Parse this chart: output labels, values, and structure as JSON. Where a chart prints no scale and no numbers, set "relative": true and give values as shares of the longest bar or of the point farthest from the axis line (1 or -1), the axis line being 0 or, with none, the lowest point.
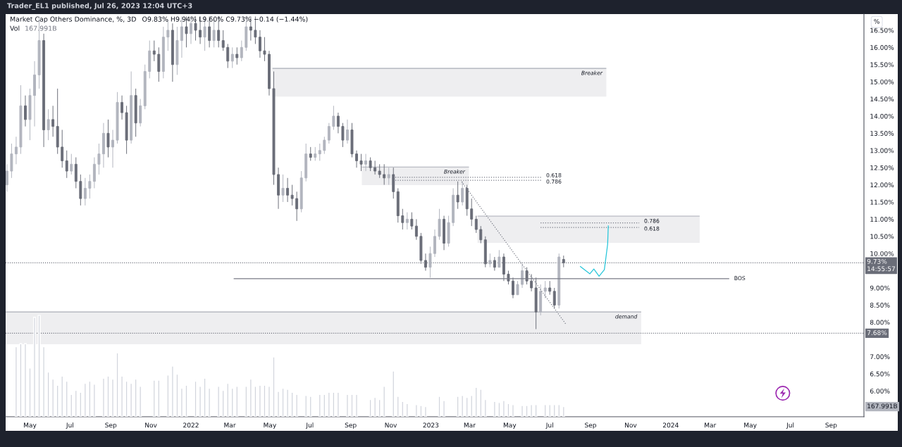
{
  "chart_data": [
    {
      "type": "candlestick",
      "title": "Market Cap Others Dominance, %, 3D",
      "subtitle": "O9.83% H9.94% L9.60% C9.73% −0.14 (−1.44%)",
      "ylabel": "%",
      "annotations": [
        "Trader_EL1 published, Jul 26, 2023 12:04 UTC+3"
      ],
      "x": [
        "2021-03-27",
        "2021-04-03",
        "2021-04-10",
        "2021-04-17",
        "2021-04-24",
        "2021-05-01",
        "2021-05-08",
        "2021-05-15",
        "2021-05-22",
        "2021-05-29",
        "2021-06-05",
        "2021-06-12",
        "2021-06-19",
        "2021-06-26",
        "2021-07-03",
        "2021-07-10",
        "2021-07-17",
        "2021-07-24",
        "2021-07-31",
        "2021-08-07",
        "2021-08-14",
        "2021-08-21",
        "2021-08-28",
        "2021-09-04",
        "2021-09-11",
        "2021-09-18",
        "2021-09-25",
        "2021-10-02",
        "2021-10-09",
        "2021-10-16",
        "2021-10-23",
        "2021-10-30",
        "2021-11-06",
        "2021-11-13",
        "2021-11-20",
        "2021-11-27",
        "2021-12-04",
        "2021-12-11",
        "2021-12-18",
        "2021-12-25",
        "2022-01-01",
        "2022-01-08",
        "2022-01-15",
        "2022-01-22",
        "2022-01-29",
        "2022-02-05",
        "2022-02-12",
        "2022-02-19",
        "2022-02-26",
        "2022-03-05",
        "2022-03-12",
        "2022-03-19",
        "2022-03-26",
        "2022-04-02",
        "2022-04-09",
        "2022-04-16",
        "2022-04-23",
        "2022-04-30",
        "2022-05-07",
        "2022-05-14",
        "2022-05-21",
        "2022-05-28",
        "2022-06-04",
        "2022-06-11",
        "2022-06-18",
        "2022-06-25",
        "2022-07-02",
        "2022-07-09",
        "2022-07-16",
        "2022-07-23",
        "2022-07-30",
        "2022-08-06",
        "2022-08-13",
        "2022-08-20",
        "2022-08-27",
        "2022-09-03",
        "2022-09-10",
        "2022-09-17",
        "2022-09-24",
        "2022-10-01",
        "2022-10-08",
        "2022-10-15",
        "2022-10-22",
        "2022-10-29",
        "2022-11-05",
        "2022-11-12",
        "2022-11-19",
        "2022-11-26",
        "2022-12-03",
        "2022-12-10",
        "2022-12-17",
        "2022-12-24",
        "2022-12-31",
        "2023-01-07",
        "2023-01-14",
        "2023-01-21",
        "2023-01-28",
        "2023-02-04",
        "2023-02-11",
        "2023-02-18",
        "2023-02-25",
        "2023-03-04",
        "2023-03-11",
        "2023-03-18",
        "2023-03-25",
        "2023-04-01",
        "2023-04-08",
        "2023-04-15",
        "2023-04-22",
        "2023-04-29",
        "2023-05-06",
        "2023-05-13",
        "2023-05-20",
        "2023-05-27",
        "2023-06-03",
        "2023-06-10",
        "2023-06-17",
        "2023-06-24",
        "2023-07-01",
        "2023-07-08",
        "2023-07-15",
        "2023-07-22"
      ],
      "ohlc": [
        [
          12.0,
          12.6,
          11.8,
          12.4
        ],
        [
          12.4,
          13.2,
          12.2,
          12.9
        ],
        [
          12.9,
          13.4,
          12.6,
          13.1
        ],
        [
          13.1,
          14.9,
          12.9,
          14.3
        ],
        [
          14.3,
          14.6,
          13.7,
          13.9
        ],
        [
          13.9,
          14.8,
          13.3,
          14.6
        ],
        [
          14.6,
          15.6,
          13.7,
          15.2
        ],
        [
          15.2,
          16.9,
          14.8,
          16.2
        ],
        [
          16.2,
          16.4,
          13.1,
          13.6
        ],
        [
          13.6,
          14.2,
          13.3,
          13.9
        ],
        [
          13.9,
          14.3,
          13.4,
          13.7
        ],
        [
          13.7,
          14.8,
          12.9,
          13.1
        ],
        [
          13.1,
          13.6,
          12.5,
          12.7
        ],
        [
          12.7,
          13.0,
          12.2,
          12.4
        ],
        [
          12.4,
          12.9,
          12.3,
          12.6
        ],
        [
          12.6,
          12.8,
          11.9,
          12.1
        ],
        [
          12.1,
          12.3,
          11.4,
          11.6
        ],
        [
          11.6,
          12.2,
          11.4,
          11.9
        ],
        [
          11.9,
          12.3,
          11.6,
          12.1
        ],
        [
          12.1,
          12.8,
          11.9,
          12.6
        ],
        [
          12.6,
          13.2,
          12.3,
          12.9
        ],
        [
          12.9,
          13.8,
          12.5,
          13.5
        ],
        [
          13.5,
          13.9,
          12.8,
          13.1
        ],
        [
          13.1,
          13.6,
          12.5,
          13.3
        ],
        [
          13.3,
          14.7,
          13.2,
          14.4
        ],
        [
          14.4,
          14.6,
          13.9,
          14.1
        ],
        [
          14.1,
          14.3,
          12.9,
          13.3
        ],
        [
          13.3,
          15.3,
          13.2,
          14.6
        ],
        [
          14.6,
          14.8,
          13.4,
          13.8
        ],
        [
          13.8,
          14.5,
          13.7,
          14.3
        ],
        [
          14.3,
          15.5,
          14.2,
          15.3
        ],
        [
          15.3,
          16.2,
          15.1,
          15.9
        ],
        [
          15.9,
          16.2,
          15.6,
          15.8
        ],
        [
          15.8,
          16.0,
          15.0,
          15.3
        ],
        [
          15.3,
          16.6,
          15.1,
          16.3
        ],
        [
          16.3,
          16.8,
          15.9,
          16.5
        ],
        [
          16.5,
          16.7,
          15.0,
          15.5
        ],
        [
          15.5,
          16.6,
          15.2,
          16.2
        ],
        [
          16.2,
          16.9,
          15.7,
          16.6
        ],
        [
          16.6,
          16.9,
          16.0,
          16.4
        ],
        [
          16.4,
          16.9,
          16.1,
          16.7
        ],
        [
          16.7,
          16.9,
          16.2,
          16.5
        ],
        [
          16.5,
          16.9,
          16.1,
          16.3
        ],
        [
          16.3,
          16.9,
          15.9,
          16.6
        ],
        [
          16.6,
          16.9,
          16.0,
          16.2
        ],
        [
          16.2,
          16.8,
          16.0,
          16.5
        ],
        [
          16.5,
          16.9,
          16.0,
          16.2
        ],
        [
          16.2,
          16.5,
          15.9,
          16.0
        ],
        [
          16.0,
          16.1,
          15.4,
          15.6
        ],
        [
          15.6,
          16.0,
          15.4,
          15.8
        ],
        [
          15.8,
          16.0,
          15.5,
          15.7
        ],
        [
          15.7,
          16.2,
          15.6,
          16.0
        ],
        [
          16.0,
          16.9,
          15.9,
          16.6
        ],
        [
          16.6,
          16.9,
          16.2,
          16.5
        ],
        [
          16.5,
          16.9,
          16.1,
          16.3
        ],
        [
          16.3,
          16.5,
          15.7,
          15.9
        ],
        [
          15.9,
          16.3,
          15.6,
          15.8
        ],
        [
          15.8,
          15.9,
          14.6,
          14.8
        ],
        [
          14.8,
          15.3,
          12.0,
          12.3
        ],
        [
          12.3,
          12.5,
          11.3,
          11.7
        ],
        [
          11.7,
          12.3,
          11.5,
          11.9
        ],
        [
          11.9,
          12.2,
          11.5,
          11.7
        ],
        [
          11.7,
          12.0,
          11.4,
          11.6
        ],
        [
          11.6,
          11.8,
          10.95,
          11.3
        ],
        [
          11.3,
          12.4,
          11.2,
          12.2
        ],
        [
          12.2,
          13.2,
          12.1,
          12.9
        ],
        [
          12.9,
          13.1,
          12.7,
          12.8
        ],
        [
          12.8,
          13.1,
          12.7,
          12.9
        ],
        [
          12.9,
          13.2,
          12.7,
          13.0
        ],
        [
          13.0,
          13.4,
          12.9,
          13.3
        ],
        [
          13.3,
          13.8,
          13.2,
          13.7
        ],
        [
          13.7,
          14.3,
          13.6,
          14.0
        ],
        [
          14.0,
          14.1,
          13.5,
          13.7
        ],
        [
          13.7,
          13.8,
          13.1,
          13.3
        ],
        [
          13.3,
          13.9,
          13.2,
          13.6
        ],
        [
          13.6,
          13.8,
          12.8,
          12.9
        ],
        [
          12.9,
          13.0,
          12.5,
          12.7
        ],
        [
          12.7,
          12.9,
          12.4,
          12.6
        ],
        [
          12.6,
          12.9,
          12.4,
          12.7
        ],
        [
          12.7,
          12.8,
          12.4,
          12.5
        ],
        [
          12.5,
          12.7,
          12.3,
          12.4
        ],
        [
          12.4,
          12.6,
          12.2,
          12.3
        ],
        [
          12.3,
          12.6,
          12.0,
          12.2
        ],
        [
          12.2,
          12.5,
          12.0,
          12.3
        ],
        [
          12.3,
          12.5,
          11.6,
          11.8
        ],
        [
          11.8,
          11.9,
          10.9,
          11.1
        ],
        [
          11.1,
          11.3,
          10.7,
          10.9
        ],
        [
          10.9,
          11.2,
          10.7,
          11.0
        ],
        [
          11.0,
          11.2,
          10.7,
          10.8
        ],
        [
          10.8,
          11.0,
          10.4,
          10.5
        ],
        [
          10.5,
          10.6,
          9.7,
          9.8
        ],
        [
          9.8,
          10.0,
          9.5,
          9.6
        ],
        [
          9.6,
          10.2,
          9.3,
          10.0
        ],
        [
          10.0,
          10.7,
          9.9,
          10.5
        ],
        [
          10.5,
          11.3,
          10.4,
          11.0
        ],
        [
          11.0,
          11.1,
          10.1,
          10.3
        ],
        [
          10.3,
          11.1,
          10.2,
          10.9
        ],
        [
          10.9,
          11.9,
          10.8,
          11.7
        ],
        [
          11.7,
          12.1,
          11.3,
          11.5
        ],
        [
          11.5,
          12.1,
          11.4,
          11.9
        ],
        [
          11.9,
          12.0,
          11.1,
          11.3
        ],
        [
          11.3,
          11.6,
          10.8,
          11.0
        ],
        [
          11.0,
          11.1,
          10.6,
          10.7
        ],
        [
          10.7,
          10.8,
          10.3,
          10.4
        ],
        [
          10.4,
          10.5,
          9.6,
          9.7
        ],
        [
          9.7,
          10.0,
          9.6,
          9.8
        ],
        [
          9.8,
          9.9,
          9.5,
          9.6
        ],
        [
          9.6,
          10.1,
          9.6,
          9.9
        ],
        [
          9.9,
          10.0,
          9.2,
          9.4
        ],
        [
          9.4,
          9.5,
          9.1,
          9.2
        ],
        [
          9.2,
          9.3,
          8.7,
          8.8
        ],
        [
          8.8,
          9.2,
          8.8,
          9.1
        ],
        [
          9.1,
          9.7,
          9.0,
          9.5
        ],
        [
          9.5,
          9.6,
          9.1,
          9.2
        ],
        [
          9.2,
          9.4,
          8.9,
          9.0
        ],
        [
          9.0,
          9.3,
          7.8,
          8.3
        ],
        [
          8.3,
          9.1,
          8.2,
          8.9
        ],
        [
          8.9,
          9.2,
          8.7,
          9.0
        ],
        [
          9.0,
          9.2,
          8.8,
          8.9
        ],
        [
          8.9,
          9.0,
          8.4,
          8.5
        ],
        [
          8.5,
          10.0,
          8.4,
          9.9
        ],
        [
          9.83,
          9.94,
          9.6,
          9.73
        ]
      ],
      "colors": [
        "#b2b5be",
        "#b2b5be",
        "#b2b5be",
        "#b2b5be",
        "#6a6d78",
        "#b2b5be",
        "#b2b5be",
        "#b2b5be",
        "#6a6d78",
        "#b2b5be",
        "#6a6d78",
        "#6a6d78",
        "#6a6d78",
        "#6a6d78",
        "#b2b5be",
        "#6a6d78",
        "#6a6d78",
        "#b2b5be",
        "#b2b5be",
        "#b2b5be",
        "#b2b5be",
        "#b2b5be",
        "#6a6d78",
        "#b2b5be",
        "#b2b5be",
        "#6a6d78",
        "#6a6d78",
        "#b2b5be",
        "#6a6d78",
        "#b2b5be",
        "#b2b5be",
        "#b2b5be",
        "#6a6d78",
        "#6a6d78",
        "#b2b5be",
        "#b2b5be",
        "#6a6d78",
        "#b2b5be",
        "#b2b5be",
        "#6a6d78",
        "#b2b5be",
        "#6a6d78",
        "#6a6d78",
        "#b2b5be",
        "#6a6d78",
        "#b2b5be",
        "#6a6d78",
        "#6a6d78",
        "#6a6d78",
        "#b2b5be",
        "#6a6d78",
        "#b2b5be",
        "#b2b5be",
        "#6a6d78",
        "#6a6d78",
        "#6a6d78",
        "#6a6d78",
        "#6a6d78",
        "#6a6d78",
        "#6a6d78",
        "#b2b5be",
        "#6a6d78",
        "#6a6d78",
        "#6a6d78",
        "#b2b5be",
        "#b2b5be",
        "#6a6d78",
        "#b2b5be",
        "#b2b5be",
        "#b2b5be",
        "#b2b5be",
        "#b2b5be",
        "#6a6d78",
        "#6a6d78",
        "#b2b5be",
        "#6a6d78",
        "#6a6d78",
        "#6a6d78",
        "#b2b5be",
        "#6a6d78",
        "#6a6d78",
        "#6a6d78",
        "#6a6d78",
        "#b2b5be",
        "#6a6d78",
        "#6a6d78",
        "#6a6d78",
        "#b2b5be",
        "#6a6d78",
        "#6a6d78",
        "#6a6d78",
        "#6a6d78",
        "#b2b5be",
        "#b2b5be",
        "#b2b5be",
        "#6a6d78",
        "#b2b5be",
        "#b2b5be",
        "#6a6d78",
        "#b2b5be",
        "#6a6d78",
        "#6a6d78",
        "#6a6d78",
        "#6a6d78",
        "#6a6d78",
        "#b2b5be",
        "#6a6d78",
        "#b2b5be",
        "#6a6d78",
        "#6a6d78",
        "#6a6d78",
        "#b2b5be",
        "#b2b5be",
        "#6a6d78",
        "#6a6d78",
        "#6a6d78",
        "#b2b5be",
        "#b2b5be",
        "#6a6d78",
        "#6a6d78",
        "#b2b5be",
        "#6a6d78"
      ],
      "series": [
        {
          "type": "line",
          "name": "Breaker",
          "x": [
            "2022-05-05",
            "2023-09-25"
          ],
          "values": [
            15.39,
            15.39
          ],
          "lower": [
            14.57,
            14.57
          ],
          "upper": [
            15.39,
            15.39
          ],
          "color": "#a9acb6",
          "line_style": "solid"
        },
        {
          "type": "line",
          "name": "Breaker",
          "x": [
            "2022-09-18",
            "2023-02-28"
          ],
          "values": [
            12.52,
            12.52
          ],
          "lower": [
            11.99,
            11.99
          ],
          "upper": [
            12.52,
            12.52
          ],
          "color": "#a9acb6",
          "line_style": "solid"
        },
        {
          "type": "line",
          "x": [
            "2023-03-13",
            "2024-02-14"
          ],
          "values": [
            11.09,
            11.09
          ],
          "lower": [
            10.31,
            10.31
          ],
          "upper": [
            11.09,
            11.09
          ],
          "color": "#a9acb6",
          "line_style": "solid"
        },
        {
          "type": "line",
          "name": "demand",
          "x": [
            "2021-03-25",
            "2023-11-17"
          ],
          "values": [
            8.3,
            8.3
          ],
          "lower": [
            7.36,
            7.36
          ],
          "upper": [
            8.3,
            8.3
          ],
          "color": "#a9acb6",
          "line_style": "solid"
        },
        {
          "type": "line",
          "name": "BOS",
          "x": [
            "2022-03-07",
            "2024-03-30"
          ],
          "values": [
            9.27,
            9.27
          ],
          "color": "#787b86",
          "line_style": "solid"
        },
        {
          "type": "line",
          "name": "0.618",
          "x": [
            "2022-11-08",
            "2023-06-18"
          ],
          "values": [
            12.22,
            12.22
          ],
          "color": "#787b86",
          "line_style": "dotted"
        },
        {
          "type": "line",
          "name": "0.786",
          "x": [
            "2022-11-08",
            "2023-06-18"
          ],
          "values": [
            12.13,
            12.13
          ],
          "color": "#787b86",
          "line_style": "dotted"
        },
        {
          "type": "line",
          "name": "0.786",
          "x": [
            "2023-06-17",
            "2023-11-14"
          ],
          "values": [
            10.89,
            10.89
          ],
          "color": "#787b86",
          "line_style": "dotted"
        },
        {
          "type": "line",
          "name": "0.618",
          "x": [
            "2023-06-17",
            "2023-11-14"
          ],
          "values": [
            10.76,
            10.76
          ],
          "color": "#787b86",
          "line_style": "dotted"
        },
        {
          "type": "line",
          "x": [
            "2023-02-17",
            "2023-07-26"
          ],
          "values": [
            12.09,
            7.93
          ],
          "color": "#787b86",
          "line_style": "dotted"
        },
        {
          "type": "line",
          "x": [
            "2023-08-16",
            "2023-08-31",
            "2023-09-06",
            "2023-09-14",
            "2023-09-22",
            "2023-09-27",
            "2023-09-28"
          ],
          "values": [
            9.63,
            9.41,
            9.55,
            9.34,
            9.53,
            10.27,
            10.82
          ],
          "color": "#26c6da",
          "line_style": "solid"
        }
      ],
      "ref_lines": [
        {
          "axis": "y",
          "value": 9.73,
          "label": "9.73%\n14:55:57",
          "color": "#6a6d78",
          "line_style": "dotted"
        },
        {
          "axis": "y",
          "value": 7.68,
          "label": "7.68%",
          "color": "#6a6d78",
          "line_style": "dotted"
        }
      ],
      "xlim": [
        "2021-03-25",
        "2024-10-21"
      ],
      "ylim": [
        5.25,
        16.97
      ],
      "xticks": [
        {
          "value": "2021-05-01",
          "label": "May"
        },
        {
          "value": "2021-07-01",
          "label": "Jul"
        },
        {
          "value": "2021-09-01",
          "label": "Sep"
        },
        {
          "value": "2021-11-01",
          "label": "Nov"
        },
        {
          "value": "2022-01-01",
          "label": "2022"
        },
        {
          "value": "2022-03-01",
          "label": "Mar"
        },
        {
          "value": "2022-05-01",
          "label": "May"
        },
        {
          "value": "2022-07-01",
          "label": "Jul"
        },
        {
          "value": "2022-09-01",
          "label": "Sep"
        },
        {
          "value": "2022-11-01",
          "label": "Nov"
        },
        {
          "value": "2023-01-01",
          "label": "2023"
        },
        {
          "value": "2023-03-01",
          "label": "Mar"
        },
        {
          "value": "2023-05-01",
          "label": "May"
        },
        {
          "value": "2023-07-01",
          "label": "Jul"
        },
        {
          "value": "2023-09-01",
          "label": "Sep"
        },
        {
          "value": "2023-11-01",
          "label": "Nov"
        },
        {
          "value": "2024-01-01",
          "label": "2024"
        },
        {
          "value": "2024-03-01",
          "label": "Mar"
        },
        {
          "value": "2024-05-01",
          "label": "May"
        },
        {
          "value": "2024-07-01",
          "label": "Jul"
        },
        {
          "value": "2024-09-01",
          "label": "Sep"
        }
      ],
      "yticks": [
        {
          "value": 6.0,
          "label": "6.00%"
        },
        {
          "value": 6.5,
          "label": "6.50%"
        },
        {
          "value": 7.0,
          "label": "7.00%"
        },
        {
          "value": 8.0,
          "label": "8.00%"
        },
        {
          "value": 8.5,
          "label": "8.50%"
        },
        {
          "value": 9.0,
          "label": "9.00%"
        },
        {
          "value": 10.0,
          "label": "10.00%"
        },
        {
          "value": 10.5,
          "label": "10.50%"
        },
        {
          "value": 11.0,
          "label": "11.00%"
        },
        {
          "value": 11.5,
          "label": "11.50%"
        },
        {
          "value": 12.0,
          "label": "12.00%"
        },
        {
          "value": 12.5,
          "label": "12.50%"
        },
        {
          "value": 13.0,
          "label": "13.00%"
        },
        {
          "value": 13.5,
          "label": "13.50%"
        },
        {
          "value": 14.0,
          "label": "14.00%"
        },
        {
          "value": 14.5,
          "label": "14.50%"
        },
        {
          "value": 15.0,
          "label": "15.00%"
        },
        {
          "value": 15.5,
          "label": "15.50%"
        },
        {
          "value": 16.0,
          "label": "16.00%"
        },
        {
          "value": 16.5,
          "label": "16.50%"
        }
      ]
    },
    {
      "type": "bar",
      "relative": true,
      "title": "Vol",
      "annotations": [
        "167.991B",
        "167.991B"
      ],
      "color": "#d1d4dc",
      "tick_labels": false,
      "xlim": [
        "2021-03-25",
        "2024-10-21"
      ],
      "x": [
        "2021-04-10",
        "2021-04-17",
        "2021-04-24",
        "2021-05-01",
        "2021-05-08",
        "2021-05-15",
        "2021-05-22",
        "2021-05-29",
        "2021-06-05",
        "2021-06-12",
        "2021-06-19",
        "2021-06-26",
        "2021-07-03",
        "2021-07-10",
        "2021-07-17",
        "2021-07-24",
        "2021-07-31",
        "2021-08-07",
        "2021-08-14",
        "2021-08-21",
        "2021-08-28",
        "2021-09-04",
        "2021-09-11",
        "2021-09-18",
        "2021-09-25",
        "2021-10-02",
        "2021-10-09",
        "2021-10-16",
        "2021-10-23",
        "2021-10-30",
        "2021-11-06",
        "2021-11-13",
        "2021-11-20",
        "2021-11-27",
        "2021-12-04",
        "2021-12-11",
        "2021-12-18",
        "2021-12-25",
        "2022-01-01",
        "2022-01-08",
        "2022-01-15",
        "2022-01-22",
        "2022-01-29",
        "2022-02-05",
        "2022-02-12",
        "2022-02-19",
        "2022-02-26",
        "2022-03-05",
        "2022-03-12",
        "2022-03-19",
        "2022-03-26",
        "2022-04-02",
        "2022-04-09",
        "2022-04-16",
        "2022-04-23",
        "2022-04-30",
        "2022-05-07",
        "2022-05-14",
        "2022-05-21",
        "2022-05-28",
        "2022-06-04",
        "2022-06-11",
        "2022-06-18",
        "2022-06-25",
        "2022-07-02",
        "2022-07-09",
        "2022-07-16",
        "2022-07-23",
        "2022-07-30",
        "2022-08-06",
        "2022-08-13",
        "2022-08-20",
        "2022-08-27",
        "2022-09-03",
        "2022-09-10",
        "2022-09-17",
        "2022-09-24",
        "2022-10-01",
        "2022-10-08",
        "2022-10-15",
        "2022-10-22",
        "2022-10-29",
        "2022-11-05",
        "2022-11-12",
        "2022-11-19",
        "2022-11-26",
        "2022-12-03",
        "2022-12-10",
        "2022-12-17",
        "2022-12-24",
        "2022-12-31",
        "2023-01-07",
        "2023-01-14",
        "2023-01-21",
        "2023-01-28",
        "2023-02-04",
        "2023-02-11",
        "2023-02-18",
        "2023-02-25",
        "2023-03-04",
        "2023-03-11",
        "2023-03-18",
        "2023-03-25",
        "2023-04-01",
        "2023-04-08",
        "2023-04-15",
        "2023-04-22",
        "2023-04-29",
        "2023-05-06",
        "2023-05-13",
        "2023-05-20",
        "2023-05-27",
        "2023-06-03",
        "2023-06-10",
        "2023-06-17",
        "2023-06-24",
        "2023-07-01",
        "2023-07-08",
        "2023-07-15",
        "2023-07-22"
      ],
      "values": [
        0.69,
        0.72,
        0.72,
        0.48,
        0.98,
        1.0,
        0.69,
        0.44,
        0.37,
        0.31,
        0.4,
        0.35,
        0.22,
        0.26,
        0.24,
        0.33,
        0.35,
        0.32,
        null,
        0.38,
        0.4,
        0.37,
        0.63,
        0.4,
        0.35,
        0.33,
        0.37,
        0.3,
        null,
        null,
        0.36,
        0.36,
        null,
        0.41,
        0.5,
        0.42,
        0.28,
        0.31,
        null,
        0.35,
        0.3,
        0.38,
        0.28,
        null,
        0.3,
        0.26,
        0.33,
        0.28,
        0.3,
        null,
        0.3,
        0.37,
        0.3,
        0.31,
        0.31,
        0.3,
        0.59,
        0.25,
        0.28,
        0.27,
        0.24,
        0.22,
        null,
        0.21,
        0.2,
        null,
        0.22,
        0.22,
        0.24,
        0.24,
        0.24,
        null,
        0.22,
        0.22,
        0.22,
        null,
        null,
        0.17,
        0.19,
        0.17,
        0.3,
        null,
        0.45,
        0.2,
        0.15,
        0.13,
        null,
        0.12,
        0.11,
        0.1,
        null,
        null,
        0.2,
        0.16,
        null,
        null,
        0.2,
        0.21,
        0.19,
        0.21,
        0.29,
        0.27,
        0.17,
        null,
        0.15,
        0.14,
        0.16,
        0.13,
        0.12,
        null,
        0.11,
        0.11,
        0.12,
        0.12,
        null,
        0.12,
        0.12,
        0.12,
        0.12,
        0.1
      ]
    }
  ]
}
